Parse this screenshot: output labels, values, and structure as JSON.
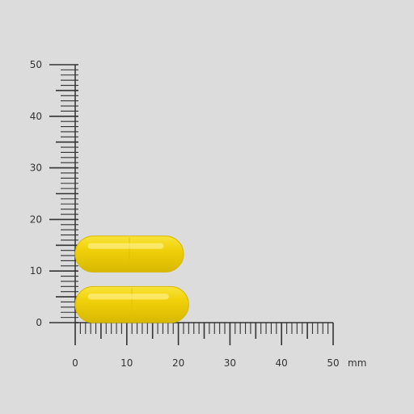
{
  "scale": {
    "unit": "mm",
    "x_axis": {
      "min": 0,
      "max": 50,
      "major_step": 10,
      "minor_step": 1,
      "labels": [
        "0",
        "10",
        "20",
        "30",
        "40",
        "50"
      ]
    },
    "y_axis": {
      "min": 0,
      "max": 50,
      "major_step": 10,
      "minor_step": 1,
      "labels": [
        "0",
        "10",
        "20",
        "30",
        "40",
        "50"
      ]
    }
  },
  "objects": [
    {
      "name": "capsule-top",
      "length_mm": 21,
      "diameter_mm": 7,
      "start_mm": 0,
      "center_mm": 13.3
    },
    {
      "name": "capsule-bottom",
      "length_mm": 22,
      "diameter_mm": 7,
      "start_mm": 0,
      "center_mm": 3.5
    }
  ],
  "colors": {
    "capsule": "#f2d20c",
    "capsule_dark": "#d8b800",
    "background": "#dcdcdc",
    "ruler": "#333333"
  }
}
